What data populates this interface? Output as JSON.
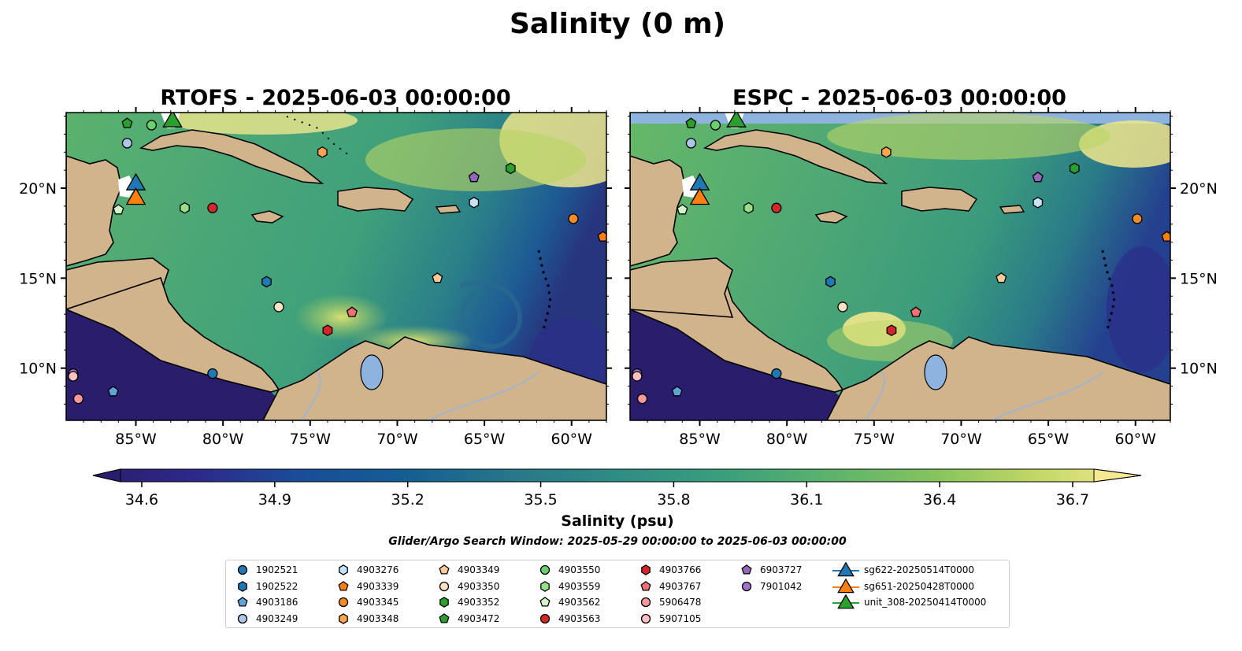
{
  "figure": {
    "title": "Salinity (0 m)",
    "search_window": "Glider/Argo Search Window: 2025-05-29 00:00:00 to 2025-06-03 00:00:00"
  },
  "panels": [
    {
      "id": "left",
      "title": "RTOFS - 2025-06-03 00:00:00",
      "model": "RTOFS"
    },
    {
      "id": "right",
      "title": "ESPC - 2025-06-03 00:00:00",
      "model": "ESPC"
    }
  ],
  "axes": {
    "lon_ticks": [
      "85°W",
      "80°W",
      "75°W",
      "70°W",
      "65°W",
      "60°W"
    ],
    "lat_ticks": [
      "20°N",
      "15°N",
      "10°N"
    ],
    "lon_values": [
      -85,
      -80,
      -75,
      -70,
      -65,
      -60
    ],
    "lat_values": [
      20,
      15,
      10
    ],
    "lon_range": [
      -89,
      -58
    ],
    "lat_range": [
      7.1,
      24.2
    ]
  },
  "colorbar": {
    "label": "Salinity (psu)",
    "ticks": [
      "34.6",
      "34.9",
      "35.2",
      "35.5",
      "35.8",
      "36.1",
      "36.4",
      "36.7"
    ],
    "vmin": 34.6,
    "vmax": 36.7,
    "colormap": "haline-like",
    "colors": [
      "#2a1d6c",
      "#2d2a8c",
      "#24409a",
      "#135996",
      "#1d6d8d",
      "#2b7f89",
      "#2f9084",
      "#3fa07b",
      "#5bb26d",
      "#7fc15e",
      "#a8cf5d",
      "#d6de6f",
      "#f5ea92"
    ],
    "extend": "both"
  },
  "legend": {
    "entries": [
      {
        "label": "1902521",
        "marker": "circle",
        "color": "#1f77b4"
      },
      {
        "label": "1902522",
        "marker": "hexagon",
        "color": "#1f77b4"
      },
      {
        "label": "4903186",
        "marker": "pentagon",
        "color": "#5fa2d8"
      },
      {
        "label": "4903249",
        "marker": "circle",
        "color": "#aec7e8"
      },
      {
        "label": "4903276",
        "marker": "hexagon",
        "color": "#c6e2f5"
      },
      {
        "label": "4903339",
        "marker": "pentagon",
        "color": "#ff7f0e"
      },
      {
        "label": "4903345",
        "marker": "circle",
        "color": "#f28a25"
      },
      {
        "label": "4903348",
        "marker": "hexagon",
        "color": "#ffa552"
      },
      {
        "label": "4903349",
        "marker": "pentagon",
        "color": "#ffcc99"
      },
      {
        "label": "4903350",
        "marker": "circle",
        "color": "#ffe2c2"
      },
      {
        "label": "4903352",
        "marker": "hexagon",
        "color": "#2ca02c"
      },
      {
        "label": "4903472",
        "marker": "pentagon",
        "color": "#2ca02c"
      },
      {
        "label": "4903550",
        "marker": "circle",
        "color": "#6bcf6b"
      },
      {
        "label": "4903559",
        "marker": "hexagon",
        "color": "#98df8a"
      },
      {
        "label": "4903562",
        "marker": "pentagon",
        "color": "#d4f5c8"
      },
      {
        "label": "4903563",
        "marker": "circle",
        "color": "#d62728"
      },
      {
        "label": "4903766",
        "marker": "hexagon",
        "color": "#d62728"
      },
      {
        "label": "4903767",
        "marker": "pentagon",
        "color": "#ef6f72"
      },
      {
        "label": "5906478",
        "marker": "circle",
        "color": "#f59a9a"
      },
      {
        "label": "5907105",
        "marker": "circle",
        "color": "#ffc0c0"
      },
      {
        "label": "6903727",
        "marker": "pentagon",
        "color": "#9467bd"
      },
      {
        "label": "7901042",
        "marker": "circle",
        "color": "#9f74c9"
      },
      {
        "label": "sg622-20250514T0000",
        "marker": "triangle",
        "color": "#1f77b4"
      },
      {
        "label": "sg651-20250428T0000",
        "marker": "triangle",
        "color": "#ff7f0e"
      },
      {
        "label": "unit_308-20250414T0000",
        "marker": "triangle",
        "color": "#2ca02c"
      }
    ]
  },
  "markers": [
    {
      "label": "4903472",
      "marker": "pentagon",
      "color": "#2ca02c",
      "lon": -85.5,
      "lat": 23.6
    },
    {
      "label": "4903550",
      "marker": "circle",
      "color": "#6bcf6b",
      "lon": -84.1,
      "lat": 23.5
    },
    {
      "label": "4903249",
      "marker": "circle",
      "color": "#aec7e8",
      "lon": -85.5,
      "lat": 22.5
    },
    {
      "label": "4903348",
      "marker": "hexagon",
      "color": "#ffa552",
      "lon": -74.3,
      "lat": 22.0
    },
    {
      "label": "6903727",
      "marker": "pentagon",
      "color": "#9467bd",
      "lon": -65.6,
      "lat": 20.6
    },
    {
      "label": "4903352",
      "marker": "hexagon",
      "color": "#2ca02c",
      "lon": -63.5,
      "lat": 21.1
    },
    {
      "label": "4903276",
      "marker": "hexagon",
      "color": "#c6e2f5",
      "lon": -65.6,
      "lat": 19.2
    },
    {
      "label": "4903559",
      "marker": "hexagon",
      "color": "#98df8a",
      "lon": -82.2,
      "lat": 18.9
    },
    {
      "label": "4903563",
      "marker": "circle",
      "color": "#d62728",
      "lon": -80.6,
      "lat": 18.9
    },
    {
      "label": "4903562",
      "marker": "pentagon",
      "color": "#d4f5c8",
      "lon": -86.0,
      "lat": 18.8
    },
    {
      "label": "4903345",
      "marker": "circle",
      "color": "#f28a25",
      "lon": -59.9,
      "lat": 18.3
    },
    {
      "label": "4903339",
      "marker": "pentagon",
      "color": "#ff7f0e",
      "lon": -58.2,
      "lat": 17.3
    },
    {
      "label": "1902522",
      "marker": "hexagon",
      "color": "#1f77b4",
      "lon": -77.5,
      "lat": 14.8
    },
    {
      "label": "4903349",
      "marker": "pentagon",
      "color": "#ffcc99",
      "lon": -67.7,
      "lat": 15.0
    },
    {
      "label": "4903350",
      "marker": "circle",
      "color": "#ffe2c2",
      "lon": -76.8,
      "lat": 13.4
    },
    {
      "label": "4903767",
      "marker": "pentagon",
      "color": "#ef6f72",
      "lon": -72.6,
      "lat": 13.1
    },
    {
      "label": "4903766",
      "marker": "hexagon",
      "color": "#d62728",
      "lon": -74.0,
      "lat": 12.1
    },
    {
      "label": "1902521",
      "marker": "circle",
      "color": "#1f77b4",
      "lon": -80.6,
      "lat": 9.7
    },
    {
      "label": "7901042",
      "marker": "circle",
      "color": "#9f74c9",
      "lon": -88.6,
      "lat": 9.7
    },
    {
      "label": "5907105",
      "marker": "circle",
      "color": "#ffc0c0",
      "lon": -88.6,
      "lat": 9.55
    },
    {
      "label": "4903186",
      "marker": "pentagon",
      "color": "#5fa2d8",
      "lon": -86.3,
      "lat": 8.7
    },
    {
      "label": "5906478",
      "marker": "circle",
      "color": "#f59a9a",
      "lon": -88.3,
      "lat": 8.3
    },
    {
      "label": "sg622-20250514T0000",
      "marker": "triangle",
      "color": "#1f77b4",
      "lon": -85.0,
      "lat": 20.2
    },
    {
      "label": "sg651-20250428T0000",
      "marker": "triangle",
      "color": "#ff7f0e",
      "lon": -85.0,
      "lat": 19.4
    },
    {
      "label": "unit_308-20250414T0000",
      "marker": "triangle",
      "color": "#2ca02c",
      "lon": -82.9,
      "lat": 23.7
    }
  ]
}
